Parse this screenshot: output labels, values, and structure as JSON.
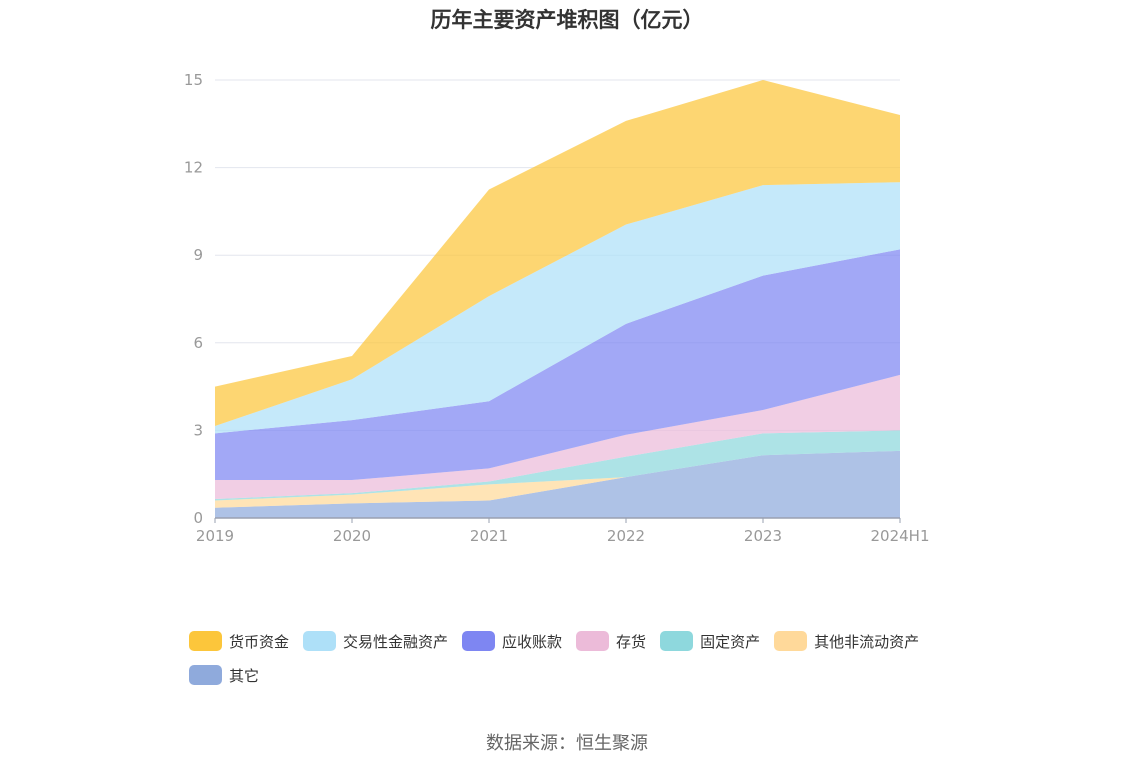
{
  "chart_data": {
    "type": "area",
    "stacked": true,
    "title": "历年主要资产堆积图（亿元）",
    "categories": [
      "2019",
      "2020",
      "2021",
      "2022",
      "2023",
      "2024H1"
    ],
    "ylim": [
      0,
      15
    ],
    "yticks": [
      0,
      3,
      6,
      9,
      12,
      15
    ],
    "grid": true,
    "legend_position": "bottom",
    "series": [
      {
        "name": "其它",
        "color": "#8FAADC",
        "values": [
          0.35,
          0.5,
          0.6,
          1.4,
          2.15,
          2.3
        ]
      },
      {
        "name": "其他非流动资产",
        "color": "#FFD99A",
        "values": [
          0.25,
          0.3,
          0.55,
          0.0,
          0.0,
          0.0
        ]
      },
      {
        "name": "固定资产",
        "color": "#8ED8DD",
        "values": [
          0.05,
          0.05,
          0.1,
          0.7,
          0.75,
          0.7
        ]
      },
      {
        "name": "存货",
        "color": "#ECBBD9",
        "values": [
          0.65,
          0.45,
          0.45,
          0.75,
          0.8,
          1.9
        ]
      },
      {
        "name": "应收账款",
        "color": "#7E86F2",
        "values": [
          1.6,
          2.05,
          2.3,
          3.8,
          4.6,
          4.3
        ]
      },
      {
        "name": "交易性金融资产",
        "color": "#AEE0F8",
        "values": [
          0.25,
          1.4,
          3.6,
          3.4,
          3.1,
          2.3
        ]
      },
      {
        "name": "货币资金",
        "color": "#FCC63B",
        "values": [
          1.35,
          0.8,
          3.65,
          3.55,
          3.6,
          2.3
        ]
      }
    ],
    "legend_order": [
      "货币资金",
      "交易性金融资产",
      "应收账款",
      "存货",
      "固定资产",
      "其他非流动资产",
      "其它"
    ]
  },
  "source": "数据来源：恒生聚源"
}
